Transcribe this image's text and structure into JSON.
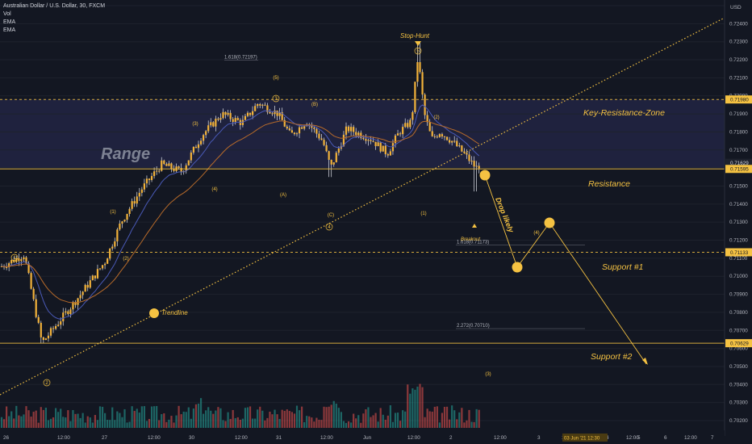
{
  "legend": {
    "symbol": "Australian Dollar / U.S. Dollar, 30, FXCM",
    "indicators": [
      "Vol",
      "EMA",
      "EMA"
    ]
  },
  "colors": {
    "background": "#131722",
    "candle": "#f2b23a",
    "wick": "#e0e3eb",
    "ema_fast": "#4a5ab8",
    "ema_slow": "#b86b2a",
    "annotation": "#f5c242",
    "range_band": "#2a2c55",
    "vol_up": "#26a69a",
    "vol_down": "#ef5350"
  },
  "chart_data": {
    "type": "candlestick",
    "pair": "AUDUSD",
    "price_axis_label": "USD",
    "ylim": [
      0.702,
      0.726
    ],
    "y_ticks": [
      "0.72500",
      "0.72400",
      "0.72300",
      "0.72200",
      "0.72100",
      "0.72000",
      "0.71900",
      "0.71800",
      "0.71700",
      "0.71600",
      "0.71500",
      "0.71400",
      "0.71300",
      "0.71200",
      "0.71100",
      "0.71000",
      "0.70900",
      "0.70800",
      "0.70700",
      "0.70600",
      "0.70500",
      "0.70400",
      "0.70300",
      "0.70200"
    ],
    "x_ticks": [
      "26",
      "12:00",
      "27",
      "12:00",
      "30",
      "12:00",
      "31",
      "12:00",
      "Jun",
      "12:00",
      "2",
      "12:00",
      "3",
      "12:00",
      "4",
      "12:00",
      "5",
      "6",
      "12:00",
      "7"
    ],
    "x_tick_current": "03 Jun '21 12:30",
    "price_labels": [
      {
        "text": "0.71980",
        "value": 0.7198
      },
      {
        "text": "0.71629",
        "value": 0.71629,
        "sub": "01:53"
      },
      {
        "text": "0.71595",
        "value": 0.71595
      },
      {
        "text": "0.71133",
        "value": 0.71133
      },
      {
        "text": "0.70629",
        "value": 0.70629
      }
    ],
    "levels": [
      {
        "name": "Key-Resistance-Zone",
        "value": 0.7198,
        "style": "dashed"
      },
      {
        "name": "Resistance",
        "value": 0.71595,
        "style": "solid"
      },
      {
        "name": "Support #1",
        "value": 0.71133,
        "style": "dashed"
      },
      {
        "name": "Support #2",
        "value": 0.70629,
        "style": "solid"
      }
    ],
    "range_box": {
      "label": "Range",
      "top": 0.7198,
      "bottom": 0.71595
    },
    "fib_levels": [
      {
        "text": "1.618(0.72197)",
        "value": 0.72197
      },
      {
        "text": "1.618(0.71173)",
        "value": 0.71173
      },
      {
        "text": "2.272(0.70710)",
        "value": 0.7071
      }
    ],
    "annotations": {
      "stop_hunt": "Stop-Hunt",
      "trendline": "Trendline",
      "drop_likely": "Drop likely",
      "breakout": "Breakout",
      "range": "Range"
    },
    "wave_labels": [
      "(1)",
      "(2)",
      "(3)",
      "(4)",
      "(5)",
      "(A)",
      "(B)",
      "(C)",
      "(1)",
      "(2)",
      "(3)",
      "(4)",
      "1",
      "2",
      "3",
      "4",
      "5"
    ]
  }
}
